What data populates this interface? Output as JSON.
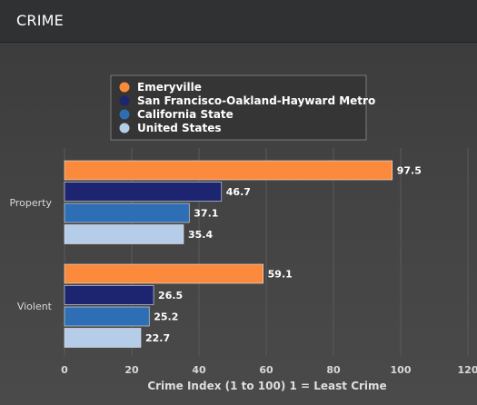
{
  "header": {
    "title": "CRIME"
  },
  "colors": {
    "series": [
      "#fb8a3c",
      "#1d2570",
      "#2d6eb5",
      "#b5cde9"
    ],
    "grid": "#5a5a5a",
    "legend_bg": "#353535",
    "legend_border": "#7a7a7a"
  },
  "chart_data": {
    "type": "bar",
    "orientation": "horizontal",
    "categories": [
      "Property",
      "Violent"
    ],
    "series": [
      {
        "name": "Emeryville",
        "values": [
          97.5,
          59.1
        ]
      },
      {
        "name": "San Francisco-Oakland-Hayward Metro",
        "values": [
          46.7,
          26.5
        ]
      },
      {
        "name": "California State",
        "values": [
          37.1,
          25.2
        ]
      },
      {
        "name": "United States",
        "values": [
          35.4,
          22.7
        ]
      }
    ],
    "xlabel": "Crime Index (1 to 100) 1 = Least Crime",
    "ylabel": "",
    "xlim": [
      0,
      120
    ],
    "xticks": [
      0,
      20,
      40,
      60,
      80,
      100,
      120
    ],
    "grid": true,
    "legend_position": "top-center"
  }
}
